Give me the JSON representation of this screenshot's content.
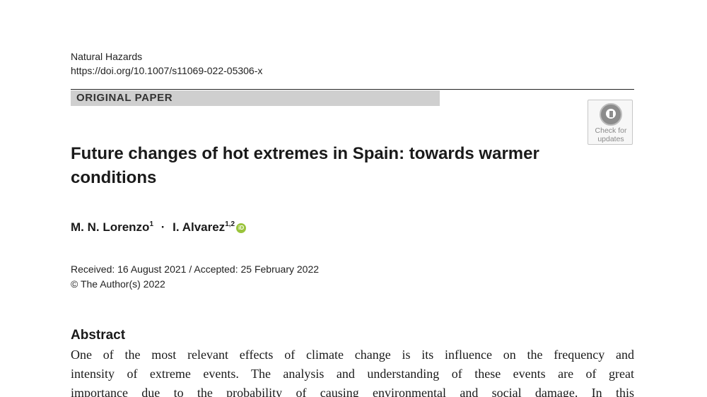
{
  "header": {
    "journal": "Natural Hazards",
    "doi": "https://doi.org/10.1007/s11069-022-05306-x"
  },
  "section_label": "ORIGINAL PAPER",
  "check_badge": {
    "line1": "Check for",
    "line2": "updates",
    "icon": "check-for-updates-icon"
  },
  "title": "Future changes of hot extremes in Spain: towards warmer conditions",
  "authors": {
    "author1_name": "M. N. Lorenzo",
    "author1_aff": "1",
    "separator": "·",
    "author2_name": "I. Alvarez",
    "author2_aff": "1,2",
    "orcid_icon": "orcid-icon",
    "orcid_glyph": "iD"
  },
  "dates": "Received: 16 August 2021 / Accepted: 25 February 2022",
  "copyright": "© The Author(s) 2022",
  "abstract": {
    "heading": "Abstract",
    "lines": [
      "One of the most relevant effects of climate change is its influence on the frequency and",
      "intensity of extreme events. The analysis and understanding of these events are of great",
      "importance due to the probability of causing environmental and social damage. In this"
    ]
  }
}
